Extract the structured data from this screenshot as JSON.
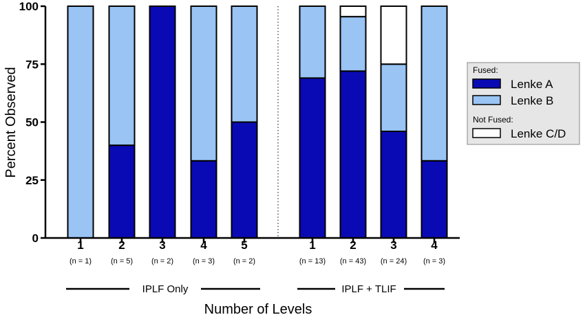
{
  "chart_data": {
    "type": "bar",
    "stacked": true,
    "ylabel": "Percent Observed",
    "xlabel": "Number of Levels",
    "ylim": [
      0,
      100
    ],
    "yticks": [
      0,
      25,
      50,
      75,
      100
    ],
    "groups": [
      {
        "name": "IPLF Only",
        "categories": [
          {
            "label": "1",
            "n": "(n = 1)"
          },
          {
            "label": "2",
            "n": "(n = 5)"
          },
          {
            "label": "3",
            "n": "(n = 2)"
          },
          {
            "label": "4",
            "n": "(n = 3)"
          },
          {
            "label": "5",
            "n": "(n = 2)"
          }
        ]
      },
      {
        "name": "IPLF + TLIF",
        "categories": [
          {
            "label": "1",
            "n": "(n = 13)"
          },
          {
            "label": "2",
            "n": "(n = 43)"
          },
          {
            "label": "3",
            "n": "(n = 24)"
          },
          {
            "label": "4",
            "n": "(n = 3)"
          }
        ]
      }
    ],
    "series": [
      {
        "name": "Lenke A",
        "color": "#0a0ab4",
        "values": [
          0,
          40,
          100,
          33.3,
          50,
          69,
          72,
          46,
          33.3
        ]
      },
      {
        "name": "Lenke B",
        "color": "#99c4f4",
        "values": [
          100,
          60,
          0,
          66.7,
          50,
          31,
          23.5,
          29,
          66.7
        ]
      },
      {
        "name": "Lenke C/D",
        "color": "#ffffff",
        "values": [
          0,
          0,
          0,
          0,
          0,
          0,
          4.5,
          25,
          0
        ]
      }
    ],
    "legend": {
      "position": "right",
      "sections": [
        {
          "title": "Fused:",
          "items": [
            "Lenke A",
            "Lenke B"
          ]
        },
        {
          "title": "Not Fused:",
          "items": [
            "Lenke C/D"
          ]
        }
      ]
    }
  }
}
